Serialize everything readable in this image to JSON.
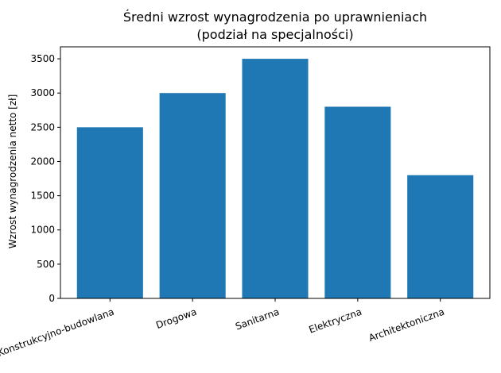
{
  "chart_data": {
    "type": "bar",
    "title_line1": "Średni wzrost wynagrodzenia po uprawnieniach",
    "title_line2": "(podział na specjalności)",
    "xlabel": "",
    "ylabel": "Wzrost wynagrodzenia netto [zł]",
    "categories": [
      "Konstrukcyjno-budowlana",
      "Drogowa",
      "Sanitarna",
      "Elektryczna",
      "Architektoniczna"
    ],
    "values": [
      2500,
      3000,
      3500,
      2800,
      1800
    ],
    "ylim": [
      0,
      3675
    ],
    "yticks": [
      0,
      500,
      1000,
      1500,
      2000,
      2500,
      3000,
      3500
    ],
    "bar_color": "#1f77b4",
    "grid": false,
    "legend": "none"
  }
}
